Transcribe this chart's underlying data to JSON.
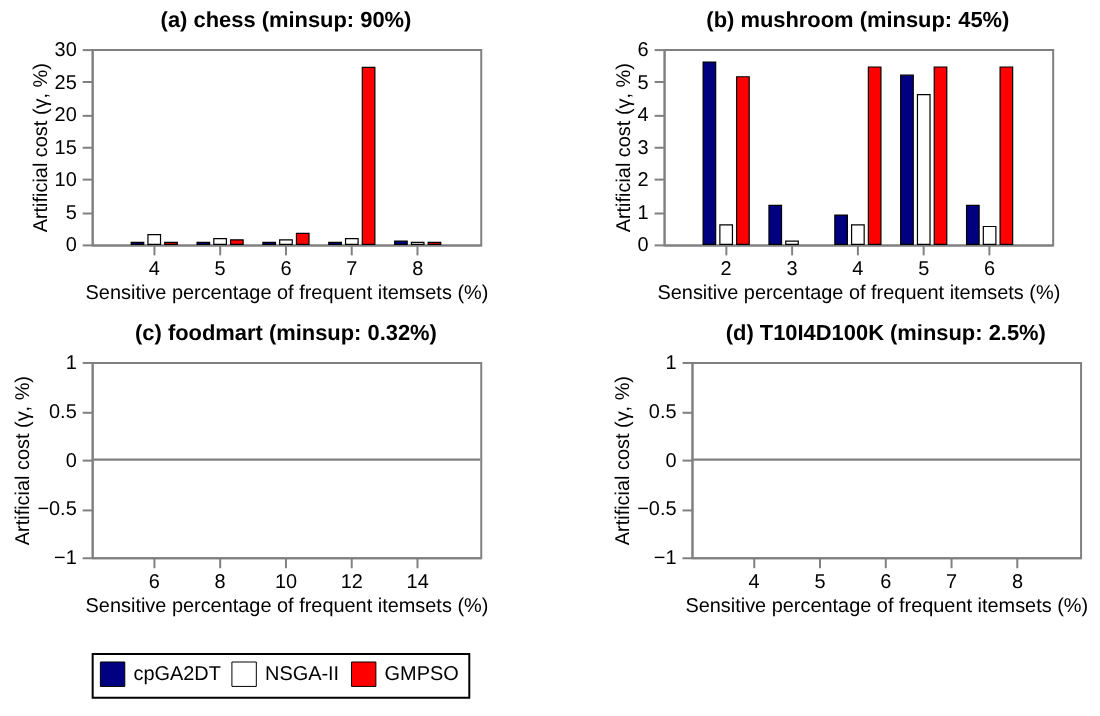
{
  "chart_data": [
    {
      "type": "bar",
      "title": "(a) chess (minsup: 90%)",
      "xlabel": "Sensitive percentage of frequent itemsets (%)",
      "ylabel": "Artificial cost (γ, %)",
      "categories": [
        "4",
        "5",
        "6",
        "7",
        "8"
      ],
      "series": [
        {
          "name": "cpGA2DT",
          "color": "#000080",
          "values": [
            0.3,
            0.3,
            0.3,
            0.3,
            0.5
          ]
        },
        {
          "name": "NSGA-II",
          "color": "#ffffff",
          "values": [
            1.5,
            0.9,
            0.7,
            0.9,
            0.3
          ]
        },
        {
          "name": "GMPSO",
          "color": "#ff0000",
          "values": [
            0.3,
            0.7,
            1.7,
            27.2,
            0.3
          ]
        }
      ],
      "ylim": [
        0,
        30
      ],
      "yticks": [
        0,
        5,
        10,
        15,
        20,
        25,
        30
      ],
      "grid": false,
      "legend": "bottom"
    },
    {
      "type": "bar",
      "title": "(b) mushroom (minsup: 45%)",
      "xlabel": "Sensitive percentage of frequent itemsets (%)",
      "ylabel": "Artificial cost (γ, %)",
      "categories": [
        "2",
        "3",
        "4",
        "5",
        "6"
      ],
      "series": [
        {
          "name": "cpGA2DT",
          "color": "#000080",
          "values": [
            5.6,
            1.2,
            0.9,
            5.2,
            1.2
          ]
        },
        {
          "name": "NSGA-II",
          "color": "#ffffff",
          "values": [
            0.6,
            0.1,
            0.6,
            4.6,
            0.55
          ]
        },
        {
          "name": "GMPSO",
          "color": "#ff0000",
          "values": [
            5.15,
            0,
            5.45,
            5.45,
            5.45
          ]
        }
      ],
      "ylim": [
        0,
        6
      ],
      "yticks": [
        0,
        1,
        2,
        3,
        4,
        5,
        6
      ],
      "grid": false,
      "legend": "bottom"
    },
    {
      "type": "bar",
      "title": "(c) foodmart (minsup: 0.32%)",
      "xlabel": "Sensitive percentage of frequent itemsets (%)",
      "ylabel": "Artificial cost (γ, %)",
      "categories": [
        "6",
        "8",
        "10",
        "12",
        "14"
      ],
      "series": [
        {
          "name": "cpGA2DT",
          "color": "#000080",
          "values": [
            0,
            0,
            0,
            0,
            0
          ]
        },
        {
          "name": "NSGA-II",
          "color": "#ffffff",
          "values": [
            0,
            0,
            0,
            0,
            0
          ]
        },
        {
          "name": "GMPSO",
          "color": "#ff0000",
          "values": [
            0,
            0,
            0,
            0,
            0
          ]
        }
      ],
      "ylim": [
        -1,
        1
      ],
      "yticks": [
        -1,
        -0.5,
        0,
        0.5,
        1
      ],
      "ref_lines": [
        {
          "axis": "y",
          "value": 0,
          "color": "#808080"
        }
      ],
      "grid": false
    },
    {
      "type": "bar",
      "title": "(d) T10I4D100K (minsup: 2.5%)",
      "xlabel": "Sensitive percentage of frequent itemsets (%)",
      "ylabel": "Artificial cost (γ, %)",
      "categories": [
        "4",
        "5",
        "6",
        "7",
        "8"
      ],
      "series": [
        {
          "name": "cpGA2DT",
          "color": "#000080",
          "values": [
            0,
            0,
            0,
            0,
            0
          ]
        },
        {
          "name": "NSGA-II",
          "color": "#ffffff",
          "values": [
            0,
            0,
            0,
            0,
            0
          ]
        },
        {
          "name": "GMPSO",
          "color": "#ff0000",
          "values": [
            0,
            0,
            0,
            0,
            0
          ]
        }
      ],
      "ylim": [
        -1,
        1
      ],
      "yticks": [
        -1,
        -0.5,
        0,
        0.5,
        1
      ],
      "ref_lines": [
        {
          "axis": "y",
          "value": 0,
          "color": "#808080"
        }
      ],
      "grid": false
    }
  ]
}
